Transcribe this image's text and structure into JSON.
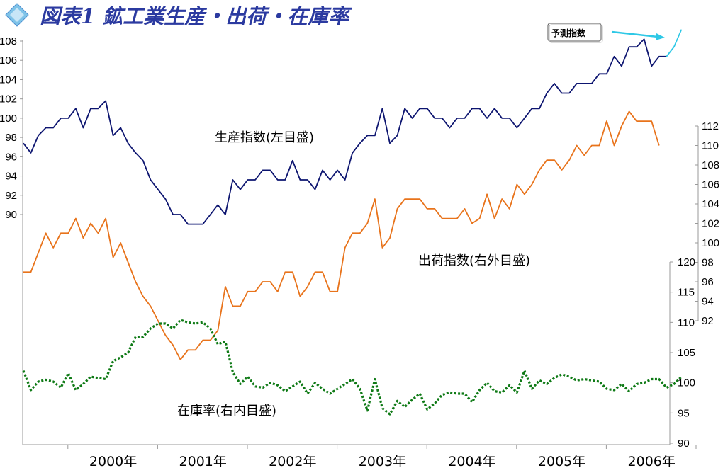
{
  "title": "図表1 鉱工業生産・出荷・在庫率",
  "forecast_label": "予測指数",
  "colors": {
    "production": "#0d1570",
    "shipments": "#e8731b",
    "inventory": "#0f7a16",
    "forecast": "#2ec8e6",
    "title": "#2b3aa0",
    "grid": "#9a9a9a"
  },
  "chart_data": {
    "type": "line",
    "title": "図表1 鉱工業生産・出荷・在庫率",
    "x_labels": [
      "2000年",
      "2001年",
      "2002年",
      "2003年",
      "2004年",
      "2005年",
      "2006年"
    ],
    "x_start": "1999-07",
    "frequency": "monthly",
    "axes": {
      "left": {
        "ticks": [
          90,
          92,
          94,
          96,
          98,
          100,
          102,
          104,
          106,
          108
        ],
        "range": [
          90,
          108
        ]
      },
      "right_outer": {
        "ticks": [
          92,
          94,
          96,
          98,
          100,
          102,
          104,
          106,
          108,
          110,
          112
        ],
        "range": [
          92,
          112
        ]
      },
      "right_inner": {
        "ticks": [
          90,
          95,
          100,
          105,
          110,
          115,
          120
        ],
        "range": [
          90,
          120
        ]
      }
    },
    "series": [
      {
        "name": "生産指数(左目盛)",
        "axis": "left",
        "values": [
          97.4,
          96.4,
          98.2,
          99.0,
          99.0,
          100.0,
          100.0,
          101.0,
          99.0,
          101.0,
          101.0,
          101.8,
          98.2,
          99.0,
          97.4,
          96.4,
          95.6,
          93.6,
          92.6,
          91.6,
          90.0,
          90.0,
          89.0,
          89.0,
          89.0,
          90.0,
          91.0,
          90.0,
          93.6,
          92.6,
          93.6,
          93.6,
          94.6,
          94.6,
          93.6,
          93.6,
          95.6,
          93.6,
          93.6,
          92.6,
          94.6,
          93.6,
          94.6,
          93.6,
          96.4,
          97.4,
          98.2,
          98.2,
          101.0,
          97.4,
          98.2,
          101.0,
          100.0,
          101.0,
          101.0,
          100.0,
          100.0,
          99.0,
          100.0,
          100.0,
          101.0,
          101.0,
          100.0,
          101.0,
          100.0,
          100.0,
          99.0,
          100.0,
          101.0,
          101.0,
          102.6,
          103.6,
          102.6,
          102.6,
          103.6,
          103.6,
          103.6,
          104.6,
          104.6,
          106.4,
          105.4,
          107.4,
          107.4,
          108.2,
          105.4,
          106.4,
          106.4
        ]
      },
      {
        "name": "予測指数",
        "axis": "left",
        "x_offset": 86,
        "values": [
          106.4,
          107.4,
          109.2
        ]
      },
      {
        "name": "出荷指数(右外目盛)",
        "axis": "right_outer",
        "values": [
          97.0,
          97.0,
          99.0,
          101.0,
          99.5,
          101.0,
          101.0,
          102.5,
          100.5,
          102.0,
          101.0,
          102.5,
          98.5,
          100.0,
          98.0,
          96.0,
          94.5,
          93.5,
          92.0,
          90.5,
          89.5,
          88.0,
          89.0,
          89.0,
          90.0,
          90.0,
          91.0,
          95.5,
          93.5,
          93.5,
          95.0,
          95.0,
          96.0,
          96.0,
          95.0,
          97.0,
          97.0,
          94.5,
          95.5,
          97.0,
          97.0,
          95.0,
          95.0,
          99.5,
          101.0,
          101.0,
          102.0,
          104.5,
          99.5,
          100.5,
          103.5,
          104.5,
          104.5,
          104.5,
          103.5,
          103.5,
          102.5,
          102.5,
          102.5,
          103.5,
          102.0,
          102.5,
          105.0,
          102.5,
          104.5,
          103.5,
          106.0,
          105.0,
          106.0,
          107.5,
          108.5,
          108.5,
          107.5,
          108.5,
          110.0,
          109.0,
          110.0,
          110.0,
          112.5,
          110.0,
          112.0,
          113.5,
          112.5,
          112.5,
          112.5,
          110.0
        ]
      },
      {
        "name": "在庫率(右内目盛)",
        "axis": "right_inner",
        "values": [
          102.0,
          98.8,
          100.2,
          100.5,
          100.2,
          99.2,
          101.6,
          98.8,
          99.8,
          101.0,
          100.8,
          100.6,
          103.6,
          104.2,
          105.0,
          107.6,
          107.6,
          109.0,
          109.8,
          109.8,
          109.0,
          110.4,
          110.0,
          109.8,
          110.0,
          109.0,
          106.4,
          106.8,
          101.8,
          99.8,
          101.0,
          99.4,
          99.2,
          100.0,
          99.6,
          98.6,
          99.4,
          100.2,
          98.2,
          100.0,
          99.0,
          98.2,
          99.0,
          99.8,
          100.6,
          99.0,
          95.4,
          100.6,
          95.8,
          94.8,
          97.0,
          96.0,
          97.2,
          98.2,
          95.6,
          96.6,
          98.0,
          98.4,
          98.2,
          98.2,
          96.8,
          98.8,
          100.0,
          98.6,
          98.4,
          99.6,
          98.4,
          102.0,
          99.0,
          100.4,
          99.8,
          100.8,
          101.4,
          101.0,
          100.4,
          100.6,
          100.4,
          100.2,
          99.0,
          98.8,
          99.8,
          98.6,
          99.8,
          100.0,
          100.6,
          100.6,
          99.2,
          99.8,
          101.0
        ]
      }
    ],
    "annotations": [
      "生産指数(左目盛)",
      "出荷指数(右外目盛)",
      "在庫率(右内目盛)",
      "予測指数"
    ]
  }
}
